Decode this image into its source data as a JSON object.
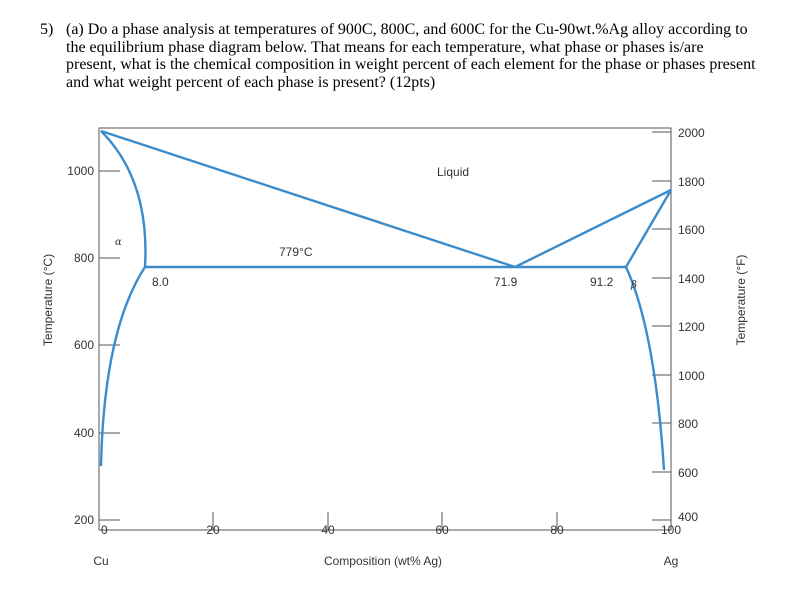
{
  "question": {
    "number": "5)",
    "text": "(a) Do a phase analysis at temperatures of 900C, 800C, and 600C for the Cu-90wt.%Ag alloy according to the equilibrium phase diagram below. That means for each temperature, what phase or phases is/are present, what is the chemical composition in weight percent of each element for the phase or phases present and what weight percent of each phase is present? (12pts)"
  },
  "diagram": {
    "left_axis_label": "Temperature (°C)",
    "right_axis_label": "Temperature (°F)",
    "x_axis_label": "Composition (wt% Ag)",
    "left_element": "Cu",
    "right_element": "Ag",
    "celsius_ticks": [
      "1000",
      "800",
      "600",
      "400",
      "200"
    ],
    "fahrenheit_ticks": [
      "2000",
      "1800",
      "1600",
      "1400",
      "1200",
      "1000",
      "800",
      "600",
      "400"
    ],
    "composition_ticks": [
      "0",
      "20",
      "40",
      "60",
      "80",
      "100"
    ],
    "labels": {
      "liquid": "Liquid",
      "alpha": "α",
      "beta": "β",
      "eutectic_temp": "779°C",
      "alpha_limit": "8.0",
      "eutectic_comp": "71.9",
      "beta_limit": "91.2"
    },
    "line_color": "#3a8ccc"
  }
}
